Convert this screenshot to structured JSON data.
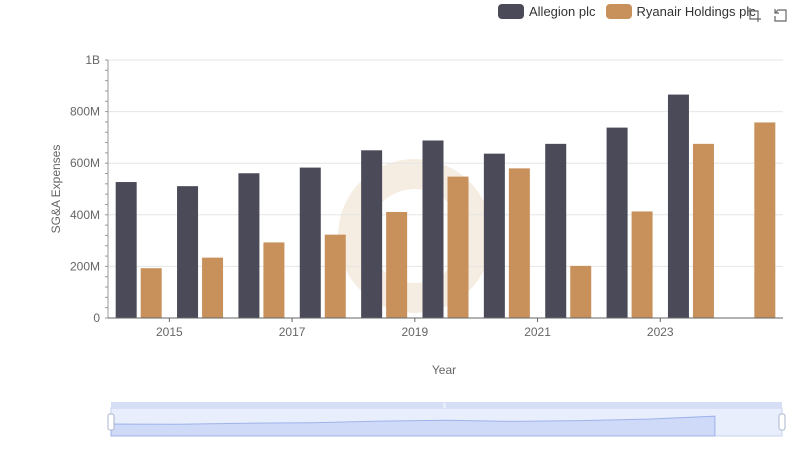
{
  "legend": {
    "items": [
      {
        "label": "Allegion plc",
        "color": "#4a4a59"
      },
      {
        "label": "Ryanair Holdings plc",
        "color": "#c8915c"
      }
    ]
  },
  "toolbox": {
    "icons": [
      "zoom-icon",
      "restore-icon"
    ]
  },
  "chart_data": {
    "type": "bar",
    "xlabel": "Year",
    "ylabel": "SG&A Expenses",
    "categories": [
      "2014",
      "2015",
      "2016",
      "2017",
      "2018",
      "2019",
      "2020",
      "2021",
      "2022",
      "2023",
      "2024"
    ],
    "x_tick_labels": [
      "2015",
      "2017",
      "2019",
      "2021",
      "2023"
    ],
    "y_tick_labels": [
      "0",
      "200M",
      "400M",
      "600M",
      "800M",
      "1B"
    ],
    "ylim": [
      0,
      1000000000
    ],
    "grid": true,
    "legend_position": "top-right",
    "series": [
      {
        "name": "Allegion plc",
        "color": "#4a4a59",
        "values": [
          527000000,
          511000000,
          561000000,
          583000000,
          650000000,
          688000000,
          637000000,
          675000000,
          738000000,
          866000000,
          null
        ]
      },
      {
        "name": "Ryanair Holdings plc",
        "color": "#c8915c",
        "values": [
          193000000,
          234000000,
          293000000,
          323000000,
          411000000,
          548000000,
          580000000,
          202000000,
          413000000,
          675000000,
          758000000
        ]
      }
    ]
  }
}
